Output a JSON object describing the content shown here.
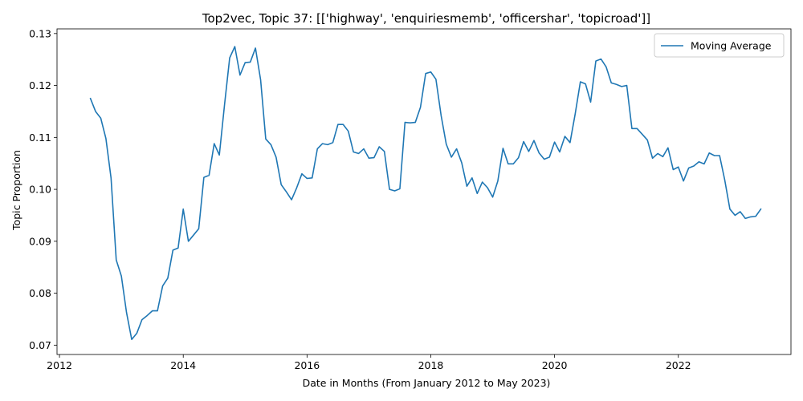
{
  "chart_data": {
    "type": "line",
    "title": "Top2vec, Topic 37: [['highway', 'enquiriesmemb', 'officershar', 'topicroad']]",
    "xlabel": "Date in Months (From January 2012 to May 2023)",
    "ylabel": "Topic Proportion",
    "xlim": [
      2011.96,
      2023.82
    ],
    "ylim": [
      0.0682,
      0.1309
    ],
    "x_ticks": [
      2012,
      2014,
      2016,
      2018,
      2020,
      2022
    ],
    "x_tick_labels": [
      "2012",
      "2014",
      "2016",
      "2018",
      "2020",
      "2022"
    ],
    "y_ticks": [
      0.07,
      0.08,
      0.09,
      0.1,
      0.11,
      0.12,
      0.13
    ],
    "y_tick_labels": [
      "0.07",
      "0.08",
      "0.09",
      "0.10",
      "0.11",
      "0.12",
      "0.13"
    ],
    "grid": false,
    "legend": {
      "position": "upper-right",
      "entries": [
        "Moving Average"
      ]
    },
    "series": [
      {
        "name": "Moving Average",
        "color": "#1f77b4",
        "x": [
          2012.5,
          2012.583,
          2012.667,
          2012.75,
          2012.833,
          2012.917,
          2013.0,
          2013.083,
          2013.167,
          2013.25,
          2013.333,
          2013.417,
          2013.5,
          2013.583,
          2013.667,
          2013.75,
          2013.833,
          2013.917,
          2014.0,
          2014.083,
          2014.167,
          2014.25,
          2014.333,
          2014.417,
          2014.5,
          2014.583,
          2014.667,
          2014.75,
          2014.833,
          2014.917,
          2015.0,
          2015.083,
          2015.167,
          2015.25,
          2015.333,
          2015.417,
          2015.5,
          2015.583,
          2015.667,
          2015.75,
          2015.833,
          2015.917,
          2016.0,
          2016.083,
          2016.167,
          2016.25,
          2016.333,
          2016.417,
          2016.5,
          2016.583,
          2016.667,
          2016.75,
          2016.833,
          2016.917,
          2017.0,
          2017.083,
          2017.167,
          2017.25,
          2017.333,
          2017.417,
          2017.5,
          2017.583,
          2017.667,
          2017.75,
          2017.833,
          2017.917,
          2018.0,
          2018.083,
          2018.167,
          2018.25,
          2018.333,
          2018.417,
          2018.5,
          2018.583,
          2018.667,
          2018.75,
          2018.833,
          2018.917,
          2019.0,
          2019.083,
          2019.167,
          2019.25,
          2019.333,
          2019.417,
          2019.5,
          2019.583,
          2019.667,
          2019.75,
          2019.833,
          2019.917,
          2020.0,
          2020.083,
          2020.167,
          2020.25,
          2020.333,
          2020.417,
          2020.5,
          2020.583,
          2020.667,
          2020.75,
          2020.833,
          2020.917,
          2021.0,
          2021.083,
          2021.167,
          2021.25,
          2021.333,
          2021.417,
          2021.5,
          2021.583,
          2021.667,
          2021.75,
          2021.833,
          2021.917,
          2022.0,
          2022.083,
          2022.167,
          2022.25,
          2022.333,
          2022.417,
          2022.5,
          2022.583,
          2022.667,
          2022.75,
          2022.833,
          2022.917,
          2023.0,
          2023.083,
          2023.167,
          2023.25,
          2023.333
        ],
        "y": [
          0.1175,
          0.115,
          0.1137,
          0.1098,
          0.1022,
          0.0864,
          0.0833,
          0.0763,
          0.0711,
          0.0723,
          0.0749,
          0.0757,
          0.0766,
          0.0766,
          0.0814,
          0.0829,
          0.0883,
          0.0887,
          0.0962,
          0.09,
          0.0912,
          0.0924,
          0.1023,
          0.1027,
          0.1088,
          0.1066,
          0.1163,
          0.1253,
          0.1275,
          0.122,
          0.1244,
          0.1245,
          0.1272,
          0.1211,
          0.1097,
          0.1086,
          0.1062,
          0.1009,
          0.0995,
          0.098,
          0.1003,
          0.103,
          0.1021,
          0.1022,
          0.1078,
          0.1088,
          0.1086,
          0.109,
          0.1125,
          0.1125,
          0.1112,
          0.1072,
          0.1069,
          0.1078,
          0.106,
          0.1061,
          0.1082,
          0.1073,
          0.1,
          0.0997,
          0.1001,
          0.1129,
          0.1128,
          0.1129,
          0.1158,
          0.1223,
          0.1226,
          0.1212,
          0.1142,
          0.1087,
          0.1062,
          0.1078,
          0.1051,
          0.1006,
          0.1022,
          0.0992,
          0.1014,
          0.1003,
          0.0985,
          0.1016,
          0.1079,
          0.1049,
          0.1049,
          0.1061,
          0.1092,
          0.1073,
          0.1094,
          0.107,
          0.1058,
          0.1062,
          0.1091,
          0.1072,
          0.1102,
          0.109,
          0.1145,
          0.1207,
          0.1203,
          0.1168,
          0.1247,
          0.1251,
          0.1236,
          0.1205,
          0.1202,
          0.1198,
          0.12,
          0.1117,
          0.1117,
          0.1106,
          0.1095,
          0.106,
          0.1069,
          0.1063,
          0.108,
          0.1038,
          0.1043,
          0.1016,
          0.1041,
          0.1045,
          0.1053,
          0.1049,
          0.107,
          0.1065,
          0.1065,
          0.1018,
          0.0962,
          0.095,
          0.0957,
          0.0944,
          0.0947,
          0.0948,
          0.0962
        ]
      }
    ]
  }
}
